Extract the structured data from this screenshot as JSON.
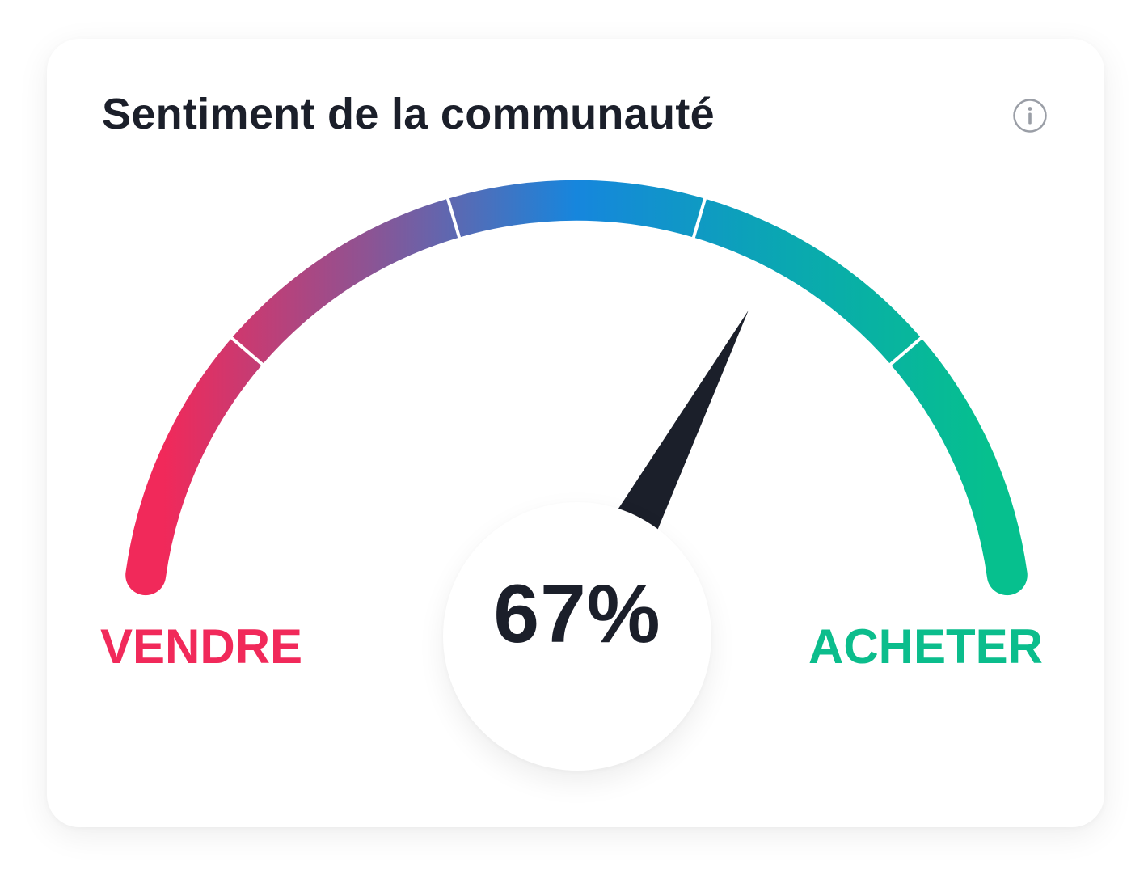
{
  "widget": {
    "title": "Sentiment de la communauté",
    "info_icon": "info-icon",
    "value_text": "67%",
    "value": 67,
    "range": [
      0,
      100
    ],
    "segments": 5,
    "low_label": "VENDRE",
    "high_label": "ACHETER",
    "colors": {
      "low": "#f1295a",
      "mid_left": "#8c5494",
      "mid": "#1686dd",
      "mid_right": "#0aa7b2",
      "high": "#06c08e",
      "needle": "#1b1f2a",
      "title": "#1b1f2a"
    }
  }
}
